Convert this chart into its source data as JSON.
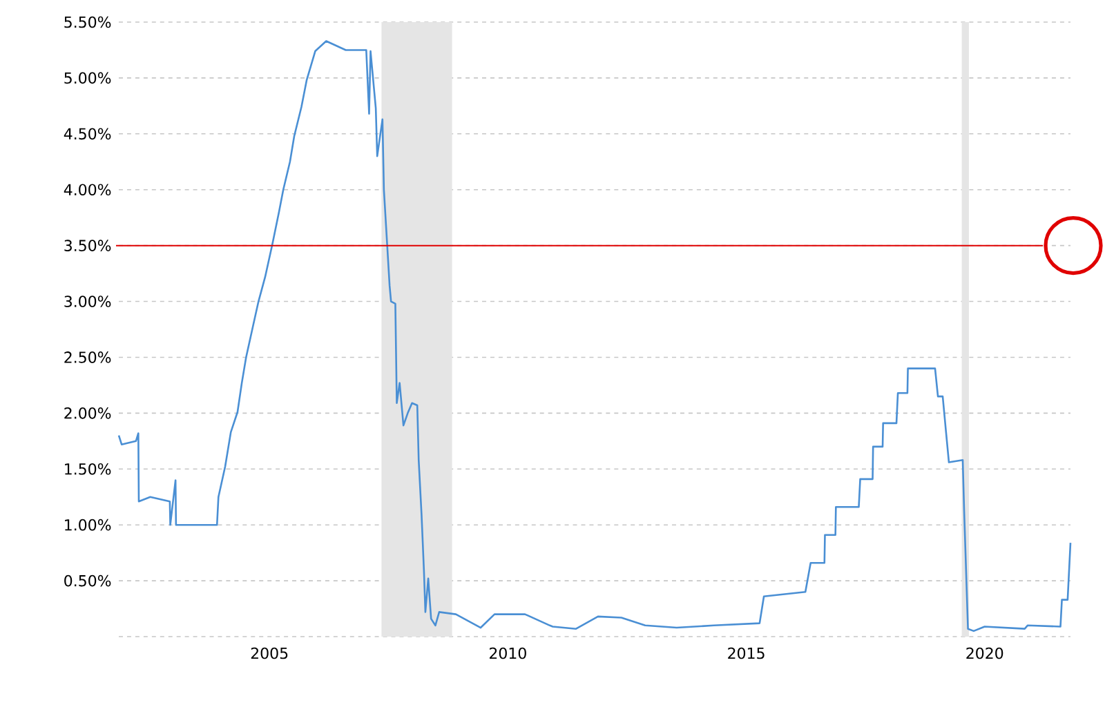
{
  "chart_data": {
    "type": "line",
    "x": [
      2001.84,
      2001.9,
      2002.2,
      2002.25,
      2002.26,
      2002.5,
      2002.91,
      2002.92,
      2003.03,
      2003.04,
      2003.9,
      2003.93,
      2004.07,
      2004.19,
      2004.33,
      2004.42,
      2004.51,
      2004.65,
      2004.77,
      2004.91,
      2005.06,
      2005.2,
      2005.29,
      2005.43,
      2005.52,
      2005.67,
      2005.78,
      2005.96,
      2006.19,
      2006.6,
      2007.03,
      2007.09,
      2007.12,
      2007.23,
      2007.26,
      2007.37,
      2007.4,
      2007.52,
      2007.55,
      2007.64,
      2007.66,
      2007.67,
      2007.73,
      2007.81,
      2007.9,
      2007.99,
      2008.1,
      2008.13,
      2008.19,
      2008.24,
      2008.27,
      2008.33,
      2008.39,
      2008.48,
      2008.56,
      2008.91,
      2009.43,
      2009.72,
      2010.36,
      2010.88,
      2010.94,
      2011.43,
      2011.89,
      2012.38,
      2012.88,
      2013.54,
      2014.32,
      2015.28,
      2015.37,
      2016.24,
      2016.35,
      2016.64,
      2016.65,
      2016.87,
      2016.88,
      2017.36,
      2017.39,
      2017.65,
      2017.66,
      2017.86,
      2017.87,
      2018.15,
      2018.18,
      2018.38,
      2018.39,
      2018.96,
      2019.02,
      2019.12,
      2019.19,
      2019.25,
      2019.54,
      2019.57,
      2019.65,
      2019.77,
      2020.0,
      2020.84,
      2020.9,
      2021.59,
      2021.62,
      2021.74,
      2021.8
    ],
    "series": [
      {
        "color": "#4a8fd4",
        "values": [
          1.8,
          1.72,
          1.75,
          1.82,
          1.21,
          1.25,
          1.21,
          1.0,
          1.4,
          1.0,
          1.0,
          1.25,
          1.52,
          1.83,
          2.01,
          2.27,
          2.5,
          2.77,
          3.0,
          3.22,
          3.51,
          3.8,
          4.0,
          4.25,
          4.48,
          4.74,
          4.98,
          5.24,
          5.33,
          5.25,
          5.25,
          4.68,
          5.24,
          4.73,
          4.3,
          4.63,
          4.0,
          3.14,
          3.0,
          2.98,
          2.4,
          2.09,
          2.27,
          1.89,
          2.0,
          2.09,
          2.07,
          1.58,
          1.09,
          0.59,
          0.22,
          0.52,
          0.16,
          0.1,
          0.22,
          0.2,
          0.08,
          0.2,
          0.2,
          0.1,
          0.09,
          0.07,
          0.18,
          0.17,
          0.1,
          0.08,
          0.1,
          0.12,
          0.36,
          0.4,
          0.66,
          0.66,
          0.91,
          0.91,
          1.16,
          1.16,
          1.41,
          1.41,
          1.7,
          1.7,
          1.91,
          1.91,
          2.18,
          2.18,
          2.4,
          2.4,
          2.15,
          2.15,
          1.83,
          1.56,
          1.58,
          1.12,
          0.07,
          0.05,
          0.09,
          0.07,
          0.1,
          0.09,
          0.33,
          0.33,
          0.84
        ]
      }
    ],
    "xlim": [
      2001.84,
      2021.8
    ],
    "ylim": [
      0,
      5.5
    ],
    "xticks": [
      2005,
      2010,
      2015,
      2020
    ],
    "yticks": [
      {
        "value": 0,
        "label": null
      },
      {
        "value": 0.5,
        "label": "0.50%"
      },
      {
        "value": 1,
        "label": "1.00%"
      },
      {
        "value": 1.5,
        "label": "1.50%"
      },
      {
        "value": 2,
        "label": "2.00%"
      },
      {
        "value": 2.5,
        "label": "2.50%"
      },
      {
        "value": 3,
        "label": "3.00%"
      },
      {
        "value": 3.5,
        "label": "3.50%"
      },
      {
        "value": 4,
        "label": "4.00%"
      },
      {
        "value": 4.5,
        "label": "4.50%"
      },
      {
        "value": 5,
        "label": "5.00%"
      },
      {
        "value": 5.5,
        "label": "5.50%"
      }
    ],
    "grid": "y",
    "bands": [
      {
        "axis": "x",
        "from": 2007.35,
        "to": 2008.83,
        "color": "#e5e5e5"
      },
      {
        "axis": "x",
        "from": 2019.52,
        "to": 2019.67,
        "color": "#e5e5e5"
      }
    ],
    "ref_lines": [
      {
        "axis": "y",
        "value": 3.5,
        "color": "#e00000"
      }
    ]
  }
}
